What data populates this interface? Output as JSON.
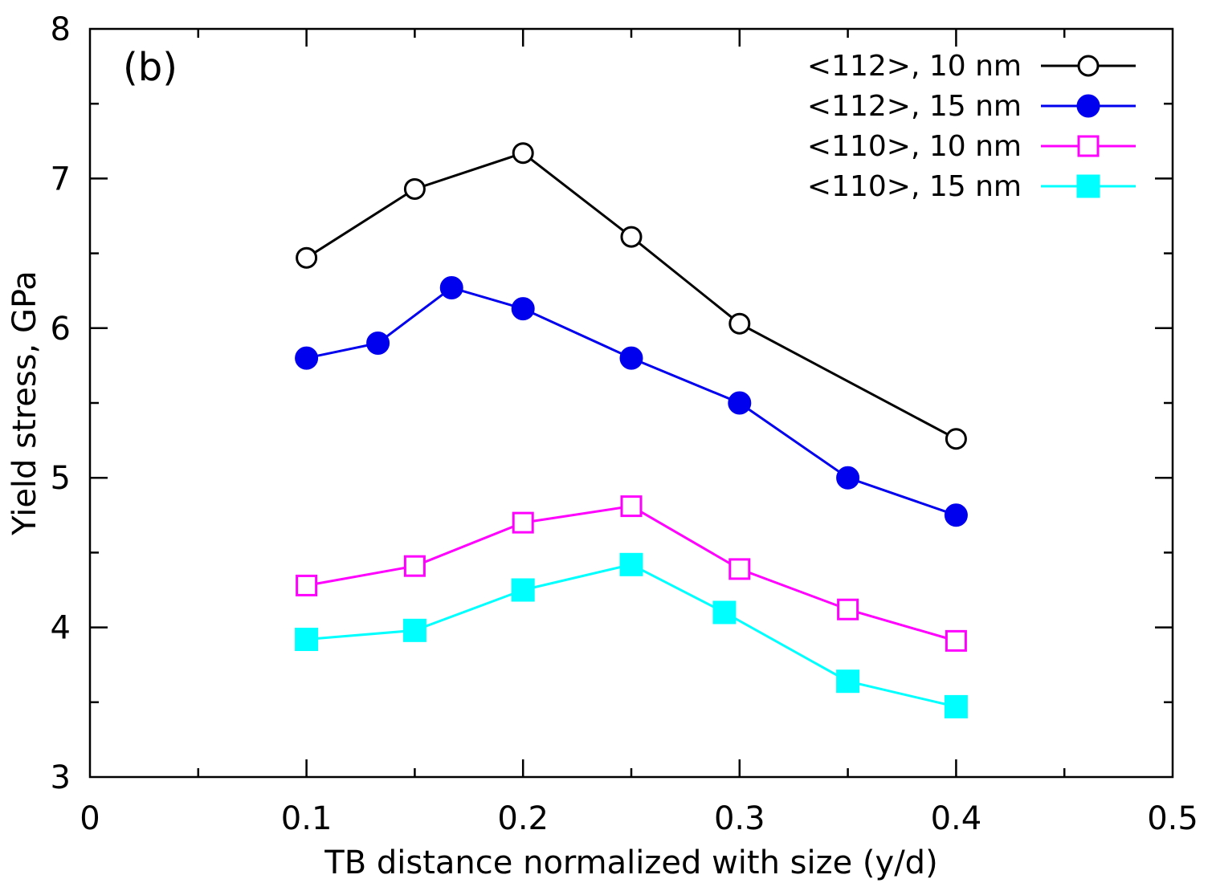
{
  "chart_data": {
    "type": "line",
    "panel_label": "(b)",
    "xlabel": "TB distance normalized with size (y/d)",
    "ylabel": "Yield stress, GPa",
    "xlim": [
      0,
      0.5
    ],
    "ylim": [
      3,
      8
    ],
    "x_ticks": [
      "0",
      "0.1",
      "0.2",
      "0.3",
      "0.4",
      "0.5"
    ],
    "x_tick_values": [
      0,
      0.1,
      0.2,
      0.3,
      0.4,
      0.5
    ],
    "x_minor_ticks": [
      0.05,
      0.15,
      0.25,
      0.35,
      0.45
    ],
    "y_ticks": [
      "3",
      "4",
      "5",
      "6",
      "7",
      "8"
    ],
    "y_tick_values": [
      3,
      4,
      5,
      6,
      7,
      8
    ],
    "y_minor_ticks": [
      3.5,
      4.5,
      5.5,
      6.5,
      7.5
    ],
    "legend_position": "top-right",
    "series": [
      {
        "name": "<112>, 10 nm",
        "color": "#000000",
        "marker": "open-circle",
        "x": [
          0.1,
          0.15,
          0.2,
          0.25,
          0.3,
          0.4
        ],
        "y": [
          6.47,
          6.93,
          7.17,
          6.61,
          6.03,
          5.26
        ]
      },
      {
        "name": "<112>, 15 nm",
        "color": "#0000ee",
        "marker": "filled-circle",
        "x": [
          0.1,
          0.133,
          0.167,
          0.2,
          0.25,
          0.3,
          0.35,
          0.4
        ],
        "y": [
          5.8,
          5.9,
          6.27,
          6.13,
          5.8,
          5.5,
          5.0,
          4.75
        ]
      },
      {
        "name": "<110>, 10 nm",
        "color": "#ff00ff",
        "marker": "open-square",
        "x": [
          0.1,
          0.15,
          0.2,
          0.25,
          0.3,
          0.35,
          0.4
        ],
        "y": [
          4.28,
          4.41,
          4.7,
          4.81,
          4.39,
          4.12,
          3.91
        ]
      },
      {
        "name": "<110>, 15 nm",
        "color": "#00ffff",
        "marker": "filled-square",
        "x": [
          0.1,
          0.15,
          0.2,
          0.25,
          0.293,
          0.35,
          0.4
        ],
        "y": [
          3.92,
          3.98,
          4.25,
          4.42,
          4.1,
          3.64,
          3.47
        ]
      }
    ]
  }
}
